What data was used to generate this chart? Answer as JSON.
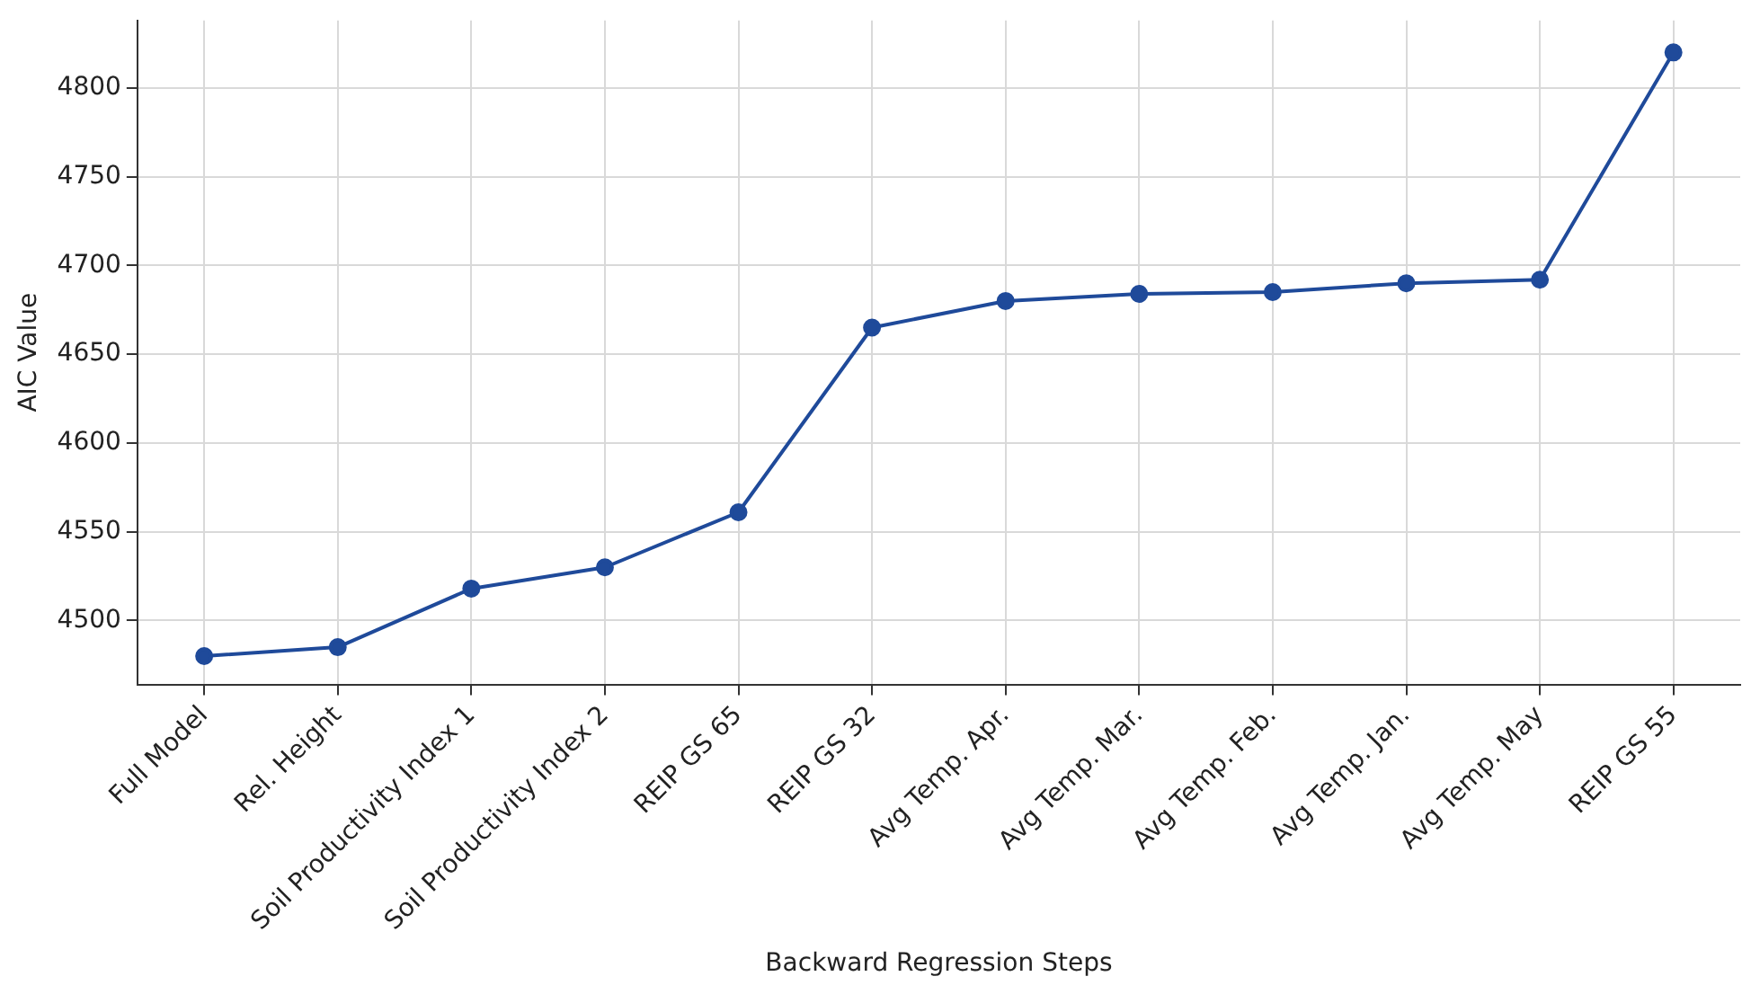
{
  "chart_data": {
    "type": "line",
    "xlabel": "Backward Regression Steps",
    "ylabel": "AIC Value",
    "categories": [
      "Full Model",
      "Rel. Height",
      "Soil Productivity Index 1",
      "Soil Productivity Index 2",
      "REIP GS 65",
      "REIP GS 32",
      "Avg Temp. Apr.",
      "Avg Temp. Mar.",
      "Avg Temp. Feb.",
      "Avg Temp. Jan.",
      "Avg Temp. May",
      "REIP GS 55"
    ],
    "series": [
      {
        "color": "#1f4a9a",
        "values": [
          4480,
          4485,
          4518,
          4530,
          4561,
          4665,
          4680,
          4684,
          4685,
          4690,
          4692,
          4820
        ]
      }
    ],
    "ylim": [
      4464,
      4838
    ],
    "yticks": [
      4500,
      4550,
      4600,
      4650,
      4700,
      4750,
      4800
    ],
    "grid": true,
    "marker": "circle",
    "line_style": "solid"
  }
}
